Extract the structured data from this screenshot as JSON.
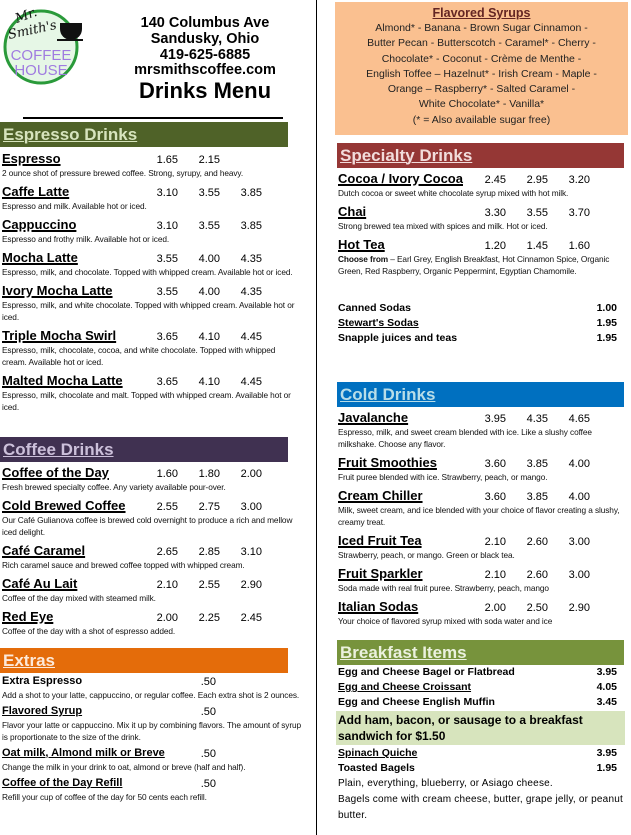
{
  "header": {
    "logo_text": [
      "Mr.",
      "Smith's",
      "COFFEE",
      "HOUSE"
    ],
    "address": "140 Columbus Ave",
    "city": "Sandusky, Ohio",
    "phone": "419-625-6885",
    "website": "mrsmithscoffee.com",
    "title": "Drinks Menu"
  },
  "colors": {
    "espresso": "#4f6228",
    "coffee": "#403151",
    "extras": "#e46c0a",
    "specialty": "#953735",
    "cold": "#0070c0",
    "breakfast": "#77933c",
    "syrups_bg": "#fac090"
  },
  "espresso": {
    "title": "Espresso Drinks",
    "items": [
      {
        "name": "Espresso",
        "prices": [
          "1.65",
          "2.15"
        ],
        "desc": "2 ounce shot of pressure brewed coffee.  Strong, syrupy, and heavy."
      },
      {
        "name": "Caffe Latte",
        "prices": [
          "3.10",
          "3.55",
          "3.85"
        ],
        "desc": "Espresso and milk.  Available hot or iced."
      },
      {
        "name": "Cappuccino",
        "prices": [
          "3.10",
          "3.55",
          "3.85"
        ],
        "desc": "Espresso and frothy milk.  Available hot or iced."
      },
      {
        "name": "Mocha Latte",
        "prices": [
          "3.55",
          "4.00",
          "4.35"
        ],
        "desc": "Espresso, milk, and chocolate.  Topped with whipped cream.  Available hot or iced."
      },
      {
        "name": "Ivory Mocha Latte",
        "prices": [
          "3.55",
          "4.00",
          "4.35"
        ],
        "desc": "Espresso, milk, and white chocolate.  Topped with whipped cream.  Available hot or iced."
      },
      {
        "name": "Triple Mocha Swirl",
        "prices": [
          "3.65",
          "4.10",
          "4.45"
        ],
        "desc": "Espresso, milk, chocolate, cocoa, and white chocolate.  Topped with whipped cream.  Available hot or iced."
      },
      {
        "name": "Malted Mocha Latte",
        "prices": [
          "3.65",
          "4.10",
          "4.45"
        ],
        "desc": "Espresso, milk, chocolate and malt.  Topped with whipped cream.  Available hot or iced."
      }
    ]
  },
  "coffee": {
    "title": "Coffee Drinks",
    "items": [
      {
        "name": "Coffee of the Day",
        "prices": [
          "1.60",
          "1.80",
          "2.00"
        ],
        "desc": "Fresh brewed specialty coffee.  Any variety available pour-over."
      },
      {
        "name": "Cold Brewed Coffee",
        "prices": [
          "2.55",
          "2.75",
          "3.00"
        ],
        "desc": "Our Café Gulianova coffee is brewed cold overnight to produce a rich and mellow iced delight."
      },
      {
        "name": "Café Caramel",
        "prices": [
          "2.65",
          "2.85",
          "3.10"
        ],
        "desc": "Rich caramel sauce and brewed coffee topped with whipped cream."
      },
      {
        "name": "Café Au Lait",
        "prices": [
          "2.10",
          "2.55",
          "2.90"
        ],
        "desc": "Coffee of the day mixed with steamed milk."
      },
      {
        "name": "Red Eye",
        "prices": [
          "2.00",
          "2.25",
          "2.45"
        ],
        "desc": "Coffee of the day with a shot of espresso added."
      }
    ]
  },
  "extras": {
    "title": "Extras",
    "items": [
      {
        "name": "Extra Espresso",
        "prices": [
          ".50"
        ],
        "desc": "Add a shot to your latte, cappuccino, or regular coffee.  Each extra shot is 2 ounces."
      },
      {
        "name": "Flavored Syrup",
        "prices": [
          ".50"
        ],
        "desc": "Flavor your latte or cappuccino.  Mix it up by combining flavors.  The amount of syrup is proportionate to the size of the drink."
      },
      {
        "name": "Oat milk, Almond milk or Breve",
        "prices": [
          ".50"
        ],
        "desc": "Change the milk in your drink to oat, almond or breve (half and half)."
      },
      {
        "name": "Coffee of the Day Refill",
        "prices": [
          ".50"
        ],
        "desc": "Refill your cup of coffee of the day for 50 cents each refill."
      }
    ]
  },
  "syrups": {
    "title": "Flavored Syrups",
    "lines": [
      "Almond* - Banana - Brown Sugar Cinnamon -",
      "Butter Pecan - Butterscotch - Caramel* - Cherry -",
      "Chocolate* - Coconut - Crème de Menthe -",
      "English Toffee – Hazelnut* - Irish Cream - Maple -",
      "Orange – Raspberry* - Salted Caramel -",
      "White Chocolate* - Vanilla*",
      "(* = Also available sugar free)"
    ]
  },
  "specialty": {
    "title": "Specialty Drinks",
    "items": [
      {
        "name": "Cocoa / Ivory Cocoa",
        "prices": [
          "2.45",
          "2.95",
          "3.20"
        ],
        "desc": "Dutch cocoa or sweet white chocolate syrup mixed with hot milk."
      },
      {
        "name": "Chai",
        "prices": [
          "3.30",
          "3.55",
          "3.70"
        ],
        "desc": "Strong brewed tea mixed with spices and milk.  Hot or iced."
      },
      {
        "name": "Hot Tea",
        "prices": [
          "1.20",
          "1.45",
          "1.60"
        ],
        "desc_lead": "Choose from",
        "desc": " – Earl Grey, English Breakfast, Hot Cinnamon Spice, Organic Green, Red Raspberry, Organic Peppermint, Egyptian Chamomile."
      }
    ],
    "sodas": [
      {
        "name": "Canned Sodas",
        "price": "1.00"
      },
      {
        "name": "Stewart's Sodas",
        "price": "1.95"
      },
      {
        "name": "Snapple juices and teas",
        "price": "1.95"
      }
    ]
  },
  "cold": {
    "title": "Cold Drinks",
    "items": [
      {
        "name": "Javalanche",
        "prices": [
          "3.95",
          "4.35",
          "4.65"
        ],
        "desc": "Espresso, milk, and sweet cream blended with ice.  Like a slushy coffee milkshake.  Choose any flavor."
      },
      {
        "name": "Fruit Smoothies",
        "prices": [
          "3.60",
          "3.85",
          "4.00"
        ],
        "desc": "Fruit puree blended with ice.  Strawberry, peach, or mango."
      },
      {
        "name": "Cream Chiller",
        "prices": [
          "3.60",
          "3.85",
          "4.00"
        ],
        "desc": "Milk, sweet cream, and ice blended with your choice of flavor creating a slushy, creamy treat."
      },
      {
        "name": "Iced Fruit Tea",
        "prices": [
          "2.10",
          "2.60",
          "3.00"
        ],
        "desc": "Strawberry, peach, or mango.  Green or black tea."
      },
      {
        "name": "Fruit Sparkler",
        "prices": [
          "2.10",
          "2.60",
          "3.00"
        ],
        "desc": "Soda made with real fruit puree.  Strawberry, peach, mango"
      },
      {
        "name": "Italian Sodas",
        "prices": [
          "2.00",
          "2.50",
          "2.90"
        ],
        "desc": "Your choice of flavored syrup mixed with soda water and ice"
      }
    ]
  },
  "breakfast": {
    "title": "Breakfast Items",
    "items": [
      {
        "name": "Egg and Cheese Bagel or Flatbread",
        "price": "3.95"
      },
      {
        "name": "Egg and Cheese Croissant",
        "price": "4.05"
      },
      {
        "name": "Egg and Cheese English Muffin",
        "price": "3.45"
      }
    ],
    "addon": "Add ham, bacon, or sausage to a breakfast sandwich for $1.50",
    "items2": [
      {
        "name": "Spinach Quiche",
        "price": "3.95"
      },
      {
        "name": "Toasted Bagels",
        "price": "1.95"
      }
    ],
    "bagel_note": [
      "Plain, everything, blueberry, or Asiago cheese.",
      "Bagels come with cream cheese, butter, grape jelly, or peanut butter."
    ]
  }
}
